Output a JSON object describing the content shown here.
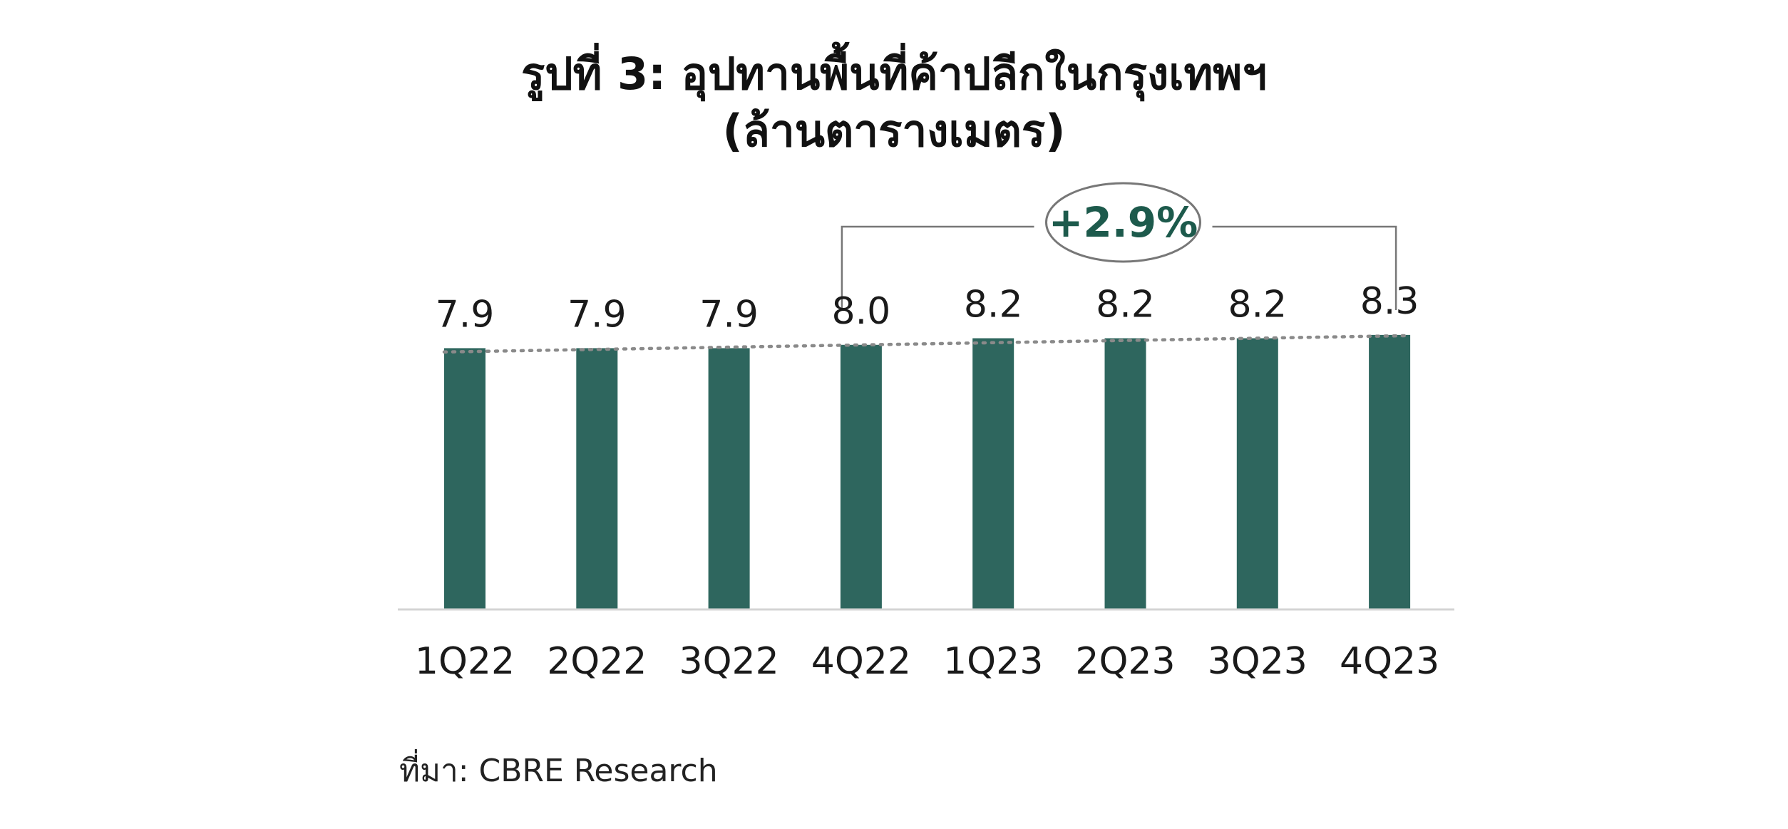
{
  "colors": {
    "bar": "#2e665e",
    "annotation_text": "#1d5a4c",
    "trendline": "#8a8a8a",
    "axis": "#d4d4d4",
    "bracket": "#777777"
  },
  "chart_data": {
    "type": "bar",
    "title": "รูปที่ 3: อุปทานพื้นที่ค้าปลีกในกรุงเทพฯ",
    "subtitle": "(ล้านตารางเมตร)",
    "categories": [
      "1Q22",
      "2Q22",
      "3Q22",
      "4Q22",
      "1Q23",
      "2Q23",
      "3Q23",
      "4Q23"
    ],
    "values": [
      7.9,
      7.9,
      7.9,
      8.0,
      8.2,
      8.2,
      8.2,
      8.3
    ],
    "value_labels": [
      "7.9",
      "7.9",
      "7.9",
      "8.0",
      "8.2",
      "8.2",
      "8.2",
      "8.3"
    ],
    "ylim": [
      0,
      11
    ],
    "grid": false,
    "trendline": "dotted",
    "annotation": {
      "text": "+2.9%",
      "from_category": "4Q22",
      "to_category": "4Q23"
    },
    "source": "ที่มา: CBRE Research"
  }
}
